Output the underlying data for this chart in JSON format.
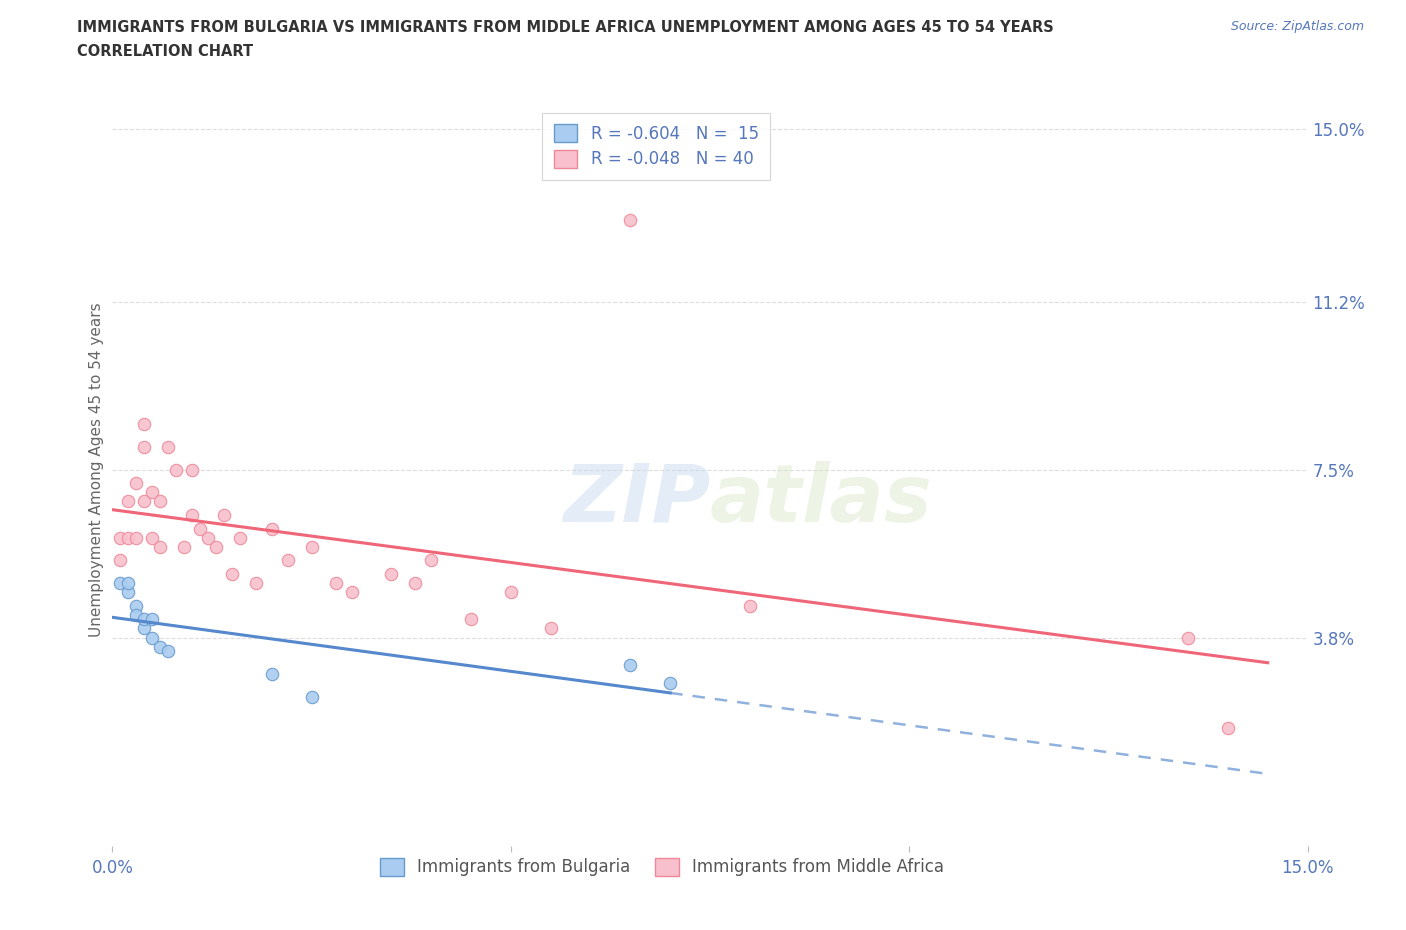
{
  "title_line1": "IMMIGRANTS FROM BULGARIA VS IMMIGRANTS FROM MIDDLE AFRICA UNEMPLOYMENT AMONG AGES 45 TO 54 YEARS",
  "title_line2": "CORRELATION CHART",
  "source_text": "Source: ZipAtlas.com",
  "ylabel": "Unemployment Among Ages 45 to 54 years",
  "xlim": [
    0.0,
    0.15
  ],
  "ylim": [
    -0.008,
    0.158
  ],
  "right_yticks": [
    0.038,
    0.075,
    0.112,
    0.15
  ],
  "right_yticklabels": [
    "3.8%",
    "7.5%",
    "11.2%",
    "15.0%"
  ],
  "watermark_zip": "ZIP",
  "watermark_atlas": "atlas",
  "legend_r_bulgaria": "-0.604",
  "legend_n_bulgaria": "15",
  "legend_r_middle_africa": "-0.048",
  "legend_n_middle_africa": "40",
  "legend_label_bulgaria": "Immigrants from Bulgaria",
  "legend_label_middle_africa": "Immigrants from Middle Africa",
  "color_bulgaria": "#aaccf0",
  "color_bulgaria_edge": "#6699cc",
  "color_bulgaria_line": "#5588cc",
  "color_middle_africa": "#f8c0cc",
  "color_middle_africa_edge": "#ee8899",
  "color_middle_africa_line": "#ee6677",
  "color_text_blue": "#5577bb",
  "color_title": "#333333",
  "background_color": "#ffffff",
  "grid_color": "#dddddd",
  "bulgaria_x": [
    0.001,
    0.002,
    0.002,
    0.003,
    0.003,
    0.004,
    0.004,
    0.005,
    0.005,
    0.006,
    0.007,
    0.02,
    0.025,
    0.065,
    0.07
  ],
  "bulgaria_y": [
    0.05,
    0.048,
    0.05,
    0.045,
    0.043,
    0.04,
    0.042,
    0.038,
    0.042,
    0.036,
    0.035,
    0.03,
    0.025,
    0.032,
    0.028
  ],
  "middle_africa_x": [
    0.001,
    0.001,
    0.002,
    0.002,
    0.003,
    0.003,
    0.004,
    0.004,
    0.004,
    0.005,
    0.005,
    0.006,
    0.006,
    0.007,
    0.008,
    0.009,
    0.01,
    0.01,
    0.011,
    0.012,
    0.013,
    0.014,
    0.015,
    0.016,
    0.018,
    0.02,
    0.022,
    0.025,
    0.028,
    0.03,
    0.035,
    0.038,
    0.04,
    0.045,
    0.05,
    0.055,
    0.065,
    0.08,
    0.135,
    0.14
  ],
  "middle_africa_y": [
    0.06,
    0.055,
    0.068,
    0.06,
    0.06,
    0.072,
    0.085,
    0.08,
    0.068,
    0.06,
    0.07,
    0.058,
    0.068,
    0.08,
    0.075,
    0.058,
    0.065,
    0.075,
    0.062,
    0.06,
    0.058,
    0.065,
    0.052,
    0.06,
    0.05,
    0.062,
    0.055,
    0.058,
    0.05,
    0.048,
    0.052,
    0.05,
    0.055,
    0.042,
    0.048,
    0.04,
    0.13,
    0.045,
    0.038,
    0.018
  ],
  "marker_size": 80
}
